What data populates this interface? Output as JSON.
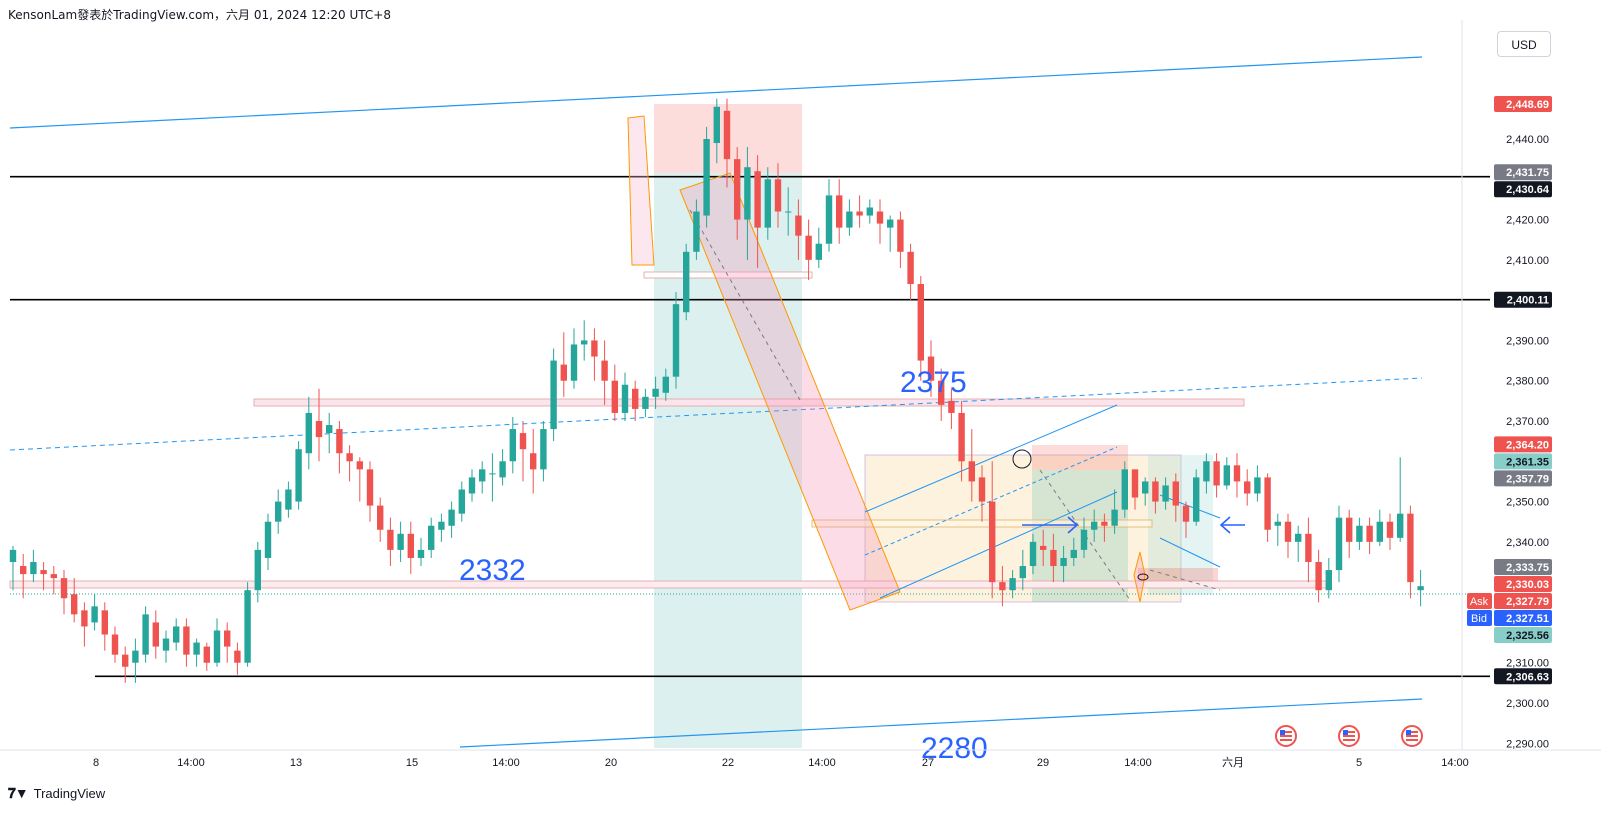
{
  "header": {
    "title": "KensonLam發表於TradingView.com，六月 01, 2024 12:20 UTC+8"
  },
  "currency_button": {
    "label": "USD"
  },
  "footer": {
    "brand": "TradingView",
    "logo": "tradingview-logo"
  },
  "colors": {
    "up": "#26a69a",
    "down": "#ef5350",
    "black_line": "#000000",
    "channel": "#2196f3",
    "annotation": "#2962ff"
  },
  "chart_data": {
    "type": "candlestick",
    "symbol_currency": "USD",
    "y_axis": {
      "range": [
        2287,
        2462
      ],
      "ticks": [
        "2,290.00",
        "2,300.00",
        "2,310.00",
        "2,340.00",
        "2,350.00",
        "2,370.00",
        "2,380.00",
        "2,390.00",
        "2,410.00",
        "2,420.00",
        "2,440.00"
      ],
      "price_labels": [
        {
          "text": "2,448.69",
          "kind": "red"
        },
        {
          "text": "2,431.75",
          "kind": "gray"
        },
        {
          "text": "2,430.64",
          "kind": "black"
        },
        {
          "text": "2,400.11",
          "kind": "black"
        },
        {
          "text": "2,364.20",
          "kind": "red"
        },
        {
          "text": "2,361.35",
          "kind": "teal"
        },
        {
          "text": "2,357.79",
          "kind": "gray"
        },
        {
          "text": "2,333.75",
          "kind": "gray"
        },
        {
          "text": "2,330.03",
          "kind": "red"
        },
        {
          "text": "2,327.79",
          "kind": "red",
          "tag": "Ask"
        },
        {
          "text": "2,327.51",
          "kind": "blue",
          "tag": "Bid"
        },
        {
          "text": "2,325.56",
          "kind": "teal"
        },
        {
          "text": "2,306.63",
          "kind": "black"
        }
      ]
    },
    "x_axis": {
      "ticks": [
        "8",
        "14:00",
        "13",
        "15",
        "14:00",
        "20",
        "22",
        "14:00",
        "27",
        "29",
        "14:00",
        "六月",
        "5",
        "14:00"
      ]
    },
    "horizontal_lines": [
      2430.64,
      2400.11,
      2306.63
    ],
    "annotations": [
      "2375",
      "2332",
      "2280"
    ],
    "ohlc": [
      [
        2335,
        2338,
        2328,
        2339
      ],
      [
        2334,
        2332,
        2326,
        2337
      ],
      [
        2332,
        2335,
        2330,
        2338
      ],
      [
        2333,
        2332,
        2328,
        2335
      ],
      [
        2332,
        2331,
        2327,
        2334
      ],
      [
        2331,
        2326,
        2322,
        2333
      ],
      [
        2327,
        2322,
        2320,
        2331
      ],
      [
        2323,
        2319,
        2314,
        2325
      ],
      [
        2320,
        2324,
        2318,
        2327
      ],
      [
        2323,
        2317,
        2313,
        2325
      ],
      [
        2317,
        2312,
        2310,
        2319
      ],
      [
        2312,
        2309,
        2305,
        2314
      ],
      [
        2310,
        2313,
        2305,
        2316
      ],
      [
        2312,
        2322,
        2310,
        2324
      ],
      [
        2320,
        2314,
        2311,
        2323
      ],
      [
        2313,
        2316,
        2310,
        2318
      ],
      [
        2315,
        2319,
        2313,
        2321
      ],
      [
        2319,
        2312,
        2309,
        2321
      ],
      [
        2312,
        2315,
        2309,
        2316
      ],
      [
        2314,
        2310,
        2308,
        2315
      ],
      [
        2310,
        2318,
        2309,
        2321
      ],
      [
        2318,
        2314,
        2310,
        2320
      ],
      [
        2313,
        2310,
        2307,
        2315
      ],
      [
        2310,
        2328,
        2309,
        2330
      ],
      [
        2328,
        2338,
        2325,
        2340
      ],
      [
        2336,
        2345,
        2333,
        2347
      ],
      [
        2345,
        2350,
        2342,
        2353
      ],
      [
        2348,
        2353,
        2346,
        2355
      ],
      [
        2350,
        2363,
        2348,
        2365
      ],
      [
        2362,
        2372,
        2358,
        2376
      ],
      [
        2370,
        2366,
        2360,
        2378
      ],
      [
        2367,
        2369,
        2362,
        2372
      ],
      [
        2368,
        2362,
        2357,
        2370
      ],
      [
        2362,
        2360,
        2355,
        2364
      ],
      [
        2360,
        2358,
        2350,
        2361
      ],
      [
        2358,
        2349,
        2345,
        2360
      ],
      [
        2349,
        2343,
        2340,
        2351
      ],
      [
        2343,
        2338,
        2334,
        2346
      ],
      [
        2338,
        2342,
        2335,
        2345
      ],
      [
        2342,
        2336,
        2332,
        2345
      ],
      [
        2336,
        2338,
        2334,
        2341
      ],
      [
        2338,
        2344,
        2336,
        2346
      ],
      [
        2343,
        2345,
        2340,
        2347
      ],
      [
        2344,
        2348,
        2341,
        2350
      ],
      [
        2347,
        2353,
        2345,
        2355
      ],
      [
        2352,
        2356,
        2350,
        2358
      ],
      [
        2355,
        2358,
        2352,
        2360
      ],
      [
        2357,
        2357,
        2350,
        2362
      ],
      [
        2356,
        2360,
        2354,
        2363
      ],
      [
        2360,
        2368,
        2357,
        2371
      ],
      [
        2367,
        2363,
        2355,
        2370
      ],
      [
        2362,
        2358,
        2352,
        2368
      ],
      [
        2358,
        2368,
        2355,
        2370
      ],
      [
        2368,
        2385,
        2365,
        2388
      ],
      [
        2384,
        2380,
        2376,
        2392
      ],
      [
        2380,
        2389,
        2378,
        2393
      ],
      [
        2389,
        2390,
        2385,
        2395
      ],
      [
        2390,
        2386,
        2380,
        2393
      ],
      [
        2385,
        2380,
        2374,
        2390
      ],
      [
        2380,
        2372,
        2370,
        2384
      ],
      [
        2372,
        2379,
        2370,
        2382
      ],
      [
        2378,
        2373,
        2370,
        2380
      ],
      [
        2373,
        2376,
        2371,
        2378
      ],
      [
        2376,
        2378,
        2373,
        2381
      ],
      [
        2377,
        2381,
        2375,
        2383
      ],
      [
        2381,
        2399,
        2378,
        2402
      ],
      [
        2397,
        2412,
        2395,
        2414
      ],
      [
        2412,
        2422,
        2410,
        2425
      ],
      [
        2421,
        2440,
        2418,
        2443
      ],
      [
        2439,
        2448,
        2434,
        2450
      ],
      [
        2447,
        2435,
        2428,
        2450
      ],
      [
        2435,
        2420,
        2415,
        2438
      ],
      [
        2420,
        2433,
        2410,
        2438
      ],
      [
        2432,
        2418,
        2408,
        2436
      ],
      [
        2418,
        2430,
        2415,
        2433
      ],
      [
        2430,
        2422,
        2418,
        2434
      ],
      [
        2422,
        2422,
        2416,
        2428
      ],
      [
        2421,
        2416,
        2410,
        2425
      ],
      [
        2416,
        2410,
        2405,
        2420
      ],
      [
        2410,
        2414,
        2408,
        2418
      ],
      [
        2414,
        2426,
        2412,
        2430
      ],
      [
        2426,
        2418,
        2414,
        2430
      ],
      [
        2418,
        2422,
        2416,
        2425
      ],
      [
        2422,
        2421,
        2418,
        2426
      ],
      [
        2421,
        2423,
        2419,
        2425
      ],
      [
        2422,
        2419,
        2414,
        2425
      ],
      [
        2418,
        2420,
        2412,
        2421
      ],
      [
        2420,
        2412,
        2408,
        2422
      ],
      [
        2412,
        2404,
        2400,
        2414
      ],
      [
        2404,
        2385,
        2380,
        2406
      ],
      [
        2386,
        2380,
        2376,
        2390
      ],
      [
        2380,
        2374,
        2370,
        2383
      ],
      [
        2375,
        2372,
        2368,
        2378
      ],
      [
        2372,
        2360,
        2355,
        2375
      ],
      [
        2360,
        2355,
        2350,
        2368
      ],
      [
        2356,
        2350,
        2345,
        2359
      ],
      [
        2350,
        2330,
        2326,
        2360
      ],
      [
        2330,
        2328,
        2324,
        2334
      ],
      [
        2328,
        2331,
        2326,
        2333
      ],
      [
        2331,
        2334,
        2328,
        2338
      ],
      [
        2334,
        2340,
        2332,
        2342
      ],
      [
        2339,
        2338,
        2334,
        2343
      ],
      [
        2338,
        2334,
        2330,
        2342
      ],
      [
        2334,
        2336,
        2330,
        2339
      ],
      [
        2336,
        2338,
        2334,
        2341
      ],
      [
        2338,
        2343,
        2336,
        2346
      ],
      [
        2343,
        2345,
        2340,
        2348
      ],
      [
        2345,
        2344,
        2340,
        2347
      ],
      [
        2344,
        2348,
        2342,
        2353
      ],
      [
        2348,
        2358,
        2346,
        2360
      ],
      [
        2358,
        2351,
        2348,
        2358
      ],
      [
        2352,
        2355,
        2349,
        2356
      ],
      [
        2355,
        2350,
        2347,
        2356
      ],
      [
        2350,
        2354,
        2348,
        2356
      ],
      [
        2355,
        2349,
        2345,
        2357
      ],
      [
        2349,
        2345,
        2341,
        2350
      ],
      [
        2345,
        2356,
        2344,
        2358
      ],
      [
        2355,
        2360,
        2352,
        2362
      ],
      [
        2360,
        2354,
        2351,
        2362
      ],
      [
        2354,
        2359,
        2353,
        2361
      ],
      [
        2359,
        2355,
        2351,
        2362
      ],
      [
        2355,
        2352,
        2349,
        2358
      ],
      [
        2352,
        2356,
        2350,
        2359
      ],
      [
        2356,
        2343,
        2340,
        2357
      ],
      [
        2344,
        2345,
        2339,
        2347
      ],
      [
        2345,
        2340,
        2336,
        2347
      ],
      [
        2340,
        2342,
        2335,
        2344
      ],
      [
        2342,
        2335,
        2330,
        2346
      ],
      [
        2335,
        2328,
        2325,
        2338
      ],
      [
        2328,
        2333,
        2326,
        2336
      ],
      [
        2333,
        2346,
        2330,
        2349
      ],
      [
        2346,
        2340,
        2336,
        2348
      ],
      [
        2340,
        2344,
        2338,
        2346
      ],
      [
        2344,
        2340,
        2337,
        2346
      ],
      [
        2340,
        2345,
        2339,
        2348
      ],
      [
        2345,
        2341,
        2338,
        2347
      ],
      [
        2341,
        2347,
        2340,
        2361
      ],
      [
        2347,
        2330,
        2326,
        2349
      ],
      [
        2328,
        2329,
        2324,
        2333
      ]
    ]
  }
}
